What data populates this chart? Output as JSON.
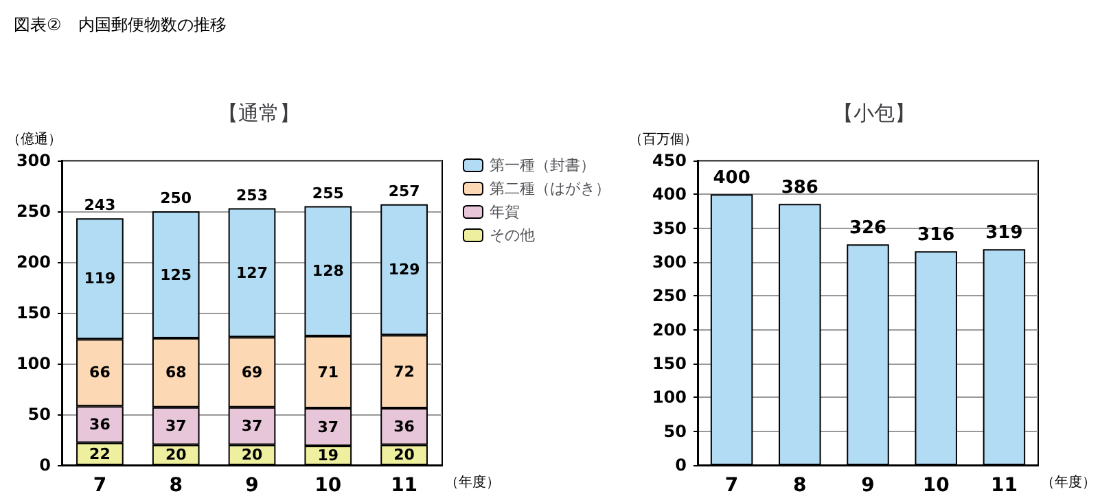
{
  "chart_data": [
    {
      "type": "bar",
      "title": "【通常】",
      "annotations": [
        "図表②　内国郵便物数の推移"
      ],
      "ylabel": "（億通）",
      "xlabel": "（年度）",
      "categories": [
        "7",
        "8",
        "9",
        "10",
        "11"
      ],
      "stacked": true,
      "data_labels": true,
      "totals": [
        "243",
        "250",
        "253",
        "255",
        "257"
      ],
      "ylim": [
        0,
        300
      ],
      "yticks": [
        0,
        50,
        100,
        150,
        200,
        250,
        300
      ],
      "grid": "y",
      "legend": "right",
      "series": [
        {
          "name": "その他",
          "color": "#eef0a0",
          "values": [
            22,
            20,
            20,
            19,
            20
          ]
        },
        {
          "name": "年賀",
          "color": "#e8c6da",
          "values": [
            36,
            37,
            37,
            37,
            36
          ]
        },
        {
          "name": "第二種（はがき）",
          "color": "#fcd8b4",
          "values": [
            66,
            68,
            69,
            71,
            72
          ]
        },
        {
          "name": "第一種（封書）",
          "color": "#b2dcf4",
          "values": [
            119,
            125,
            127,
            128,
            129
          ]
        }
      ]
    },
    {
      "type": "bar",
      "title": "【小包】",
      "ylabel": "（百万個）",
      "xlabel": "（年度）",
      "categories": [
        "7",
        "8",
        "9",
        "10",
        "11"
      ],
      "data_labels": true,
      "ylim": [
        0,
        450
      ],
      "yticks": [
        0,
        50,
        100,
        150,
        200,
        250,
        300,
        350,
        400,
        450
      ],
      "grid": "y",
      "legend": false,
      "series": [
        {
          "color": "#b2dcf4",
          "values": [
            400,
            386,
            326,
            316,
            319
          ]
        }
      ]
    }
  ]
}
